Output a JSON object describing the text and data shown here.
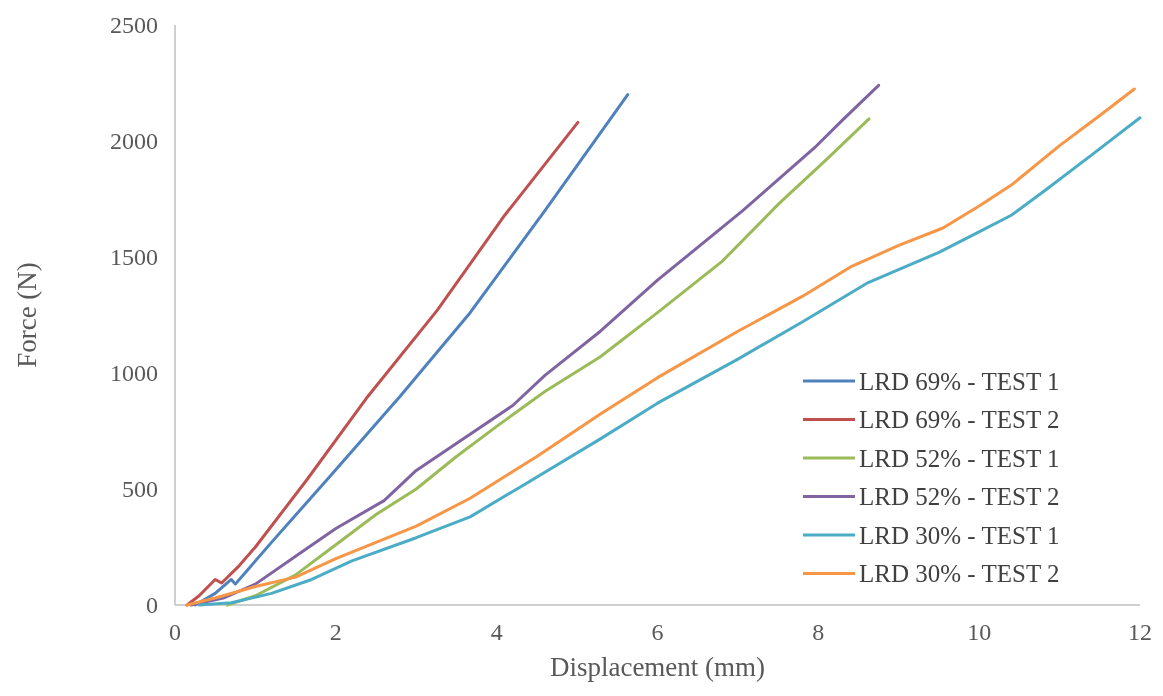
{
  "chart_data": {
    "type": "line",
    "xlabel": "Displacement (mm)",
    "ylabel": "Force (N)",
    "xlim": [
      0,
      12
    ],
    "ylim": [
      0,
      2500
    ],
    "xticks": [
      0,
      2,
      4,
      6,
      8,
      10,
      12
    ],
    "yticks": [
      0,
      500,
      1000,
      1500,
      2000,
      2500
    ],
    "grid": false,
    "legend": "bottom right",
    "marker": "none",
    "line_style": "solid",
    "series": [
      {
        "name": "LRD 69% - TEST 1",
        "color": "#4f81bd",
        "x": [
          0.25,
          0.5,
          0.7,
          0.75,
          0.9,
          1.2,
          1.89,
          2.8,
          3.67,
          4.6,
          5.63
        ],
        "values": [
          0,
          50,
          110,
          90,
          150,
          270,
          540,
          900,
          1260,
          1700,
          2200
        ]
      },
      {
        "name": "LRD 69% - TEST 2",
        "color": "#c0504d",
        "x": [
          0.15,
          0.3,
          0.5,
          0.58,
          0.8,
          1.0,
          1.64,
          2.4,
          3.26,
          4.1,
          5.01
        ],
        "values": [
          0,
          40,
          110,
          95,
          170,
          250,
          540,
          900,
          1270,
          1680,
          2080
        ]
      },
      {
        "name": "LRD 52% - TEST 1",
        "color": "#9bbb59",
        "x": [
          0.65,
          1,
          1.5,
          2,
          2.5,
          3,
          3.5,
          4,
          4.6,
          5.29,
          6,
          6.8,
          7.51,
          8.1,
          8.63
        ],
        "values": [
          0,
          40,
          130,
          260,
          390,
          500,
          640,
          770,
          920,
          1070,
          1260,
          1480,
          1730,
          1920,
          2095
        ]
      },
      {
        "name": "LRD 52% - TEST 2",
        "color": "#8064a2",
        "x": [
          0.2,
          0.6,
          1,
          1.5,
          2,
          2.6,
          3,
          3.6,
          4.2,
          4.6,
          5.29,
          6,
          7.06,
          7.95,
          8.3,
          8.75
        ],
        "values": [
          0,
          30,
          90,
          210,
          330,
          450,
          580,
          720,
          860,
          990,
          1180,
          1400,
          1700,
          1970,
          2090,
          2240
        ]
      },
      {
        "name": "LRD 30% - TEST 1",
        "color": "#4bacc6",
        "x": [
          0.3,
          0.7,
          1.2,
          1.7,
          2.2,
          3,
          3.67,
          4.3,
          5.29,
          6,
          7,
          7.8,
          8.62,
          9.5,
          9.95,
          10.4,
          10.83,
          11.4,
          12
        ],
        "values": [
          0,
          10,
          50,
          110,
          190,
          290,
          380,
          510,
          716,
          870,
          1060,
          1220,
          1390,
          1520,
          1600,
          1680,
          1790,
          1940,
          2100
        ]
      },
      {
        "name": "LRD 30% - TEST 2",
        "color": "#f79646",
        "x": [
          0.15,
          0.5,
          1,
          1.5,
          2,
          2.5,
          3,
          3.67,
          4.5,
          5.29,
          6,
          7,
          7.8,
          8.4,
          9,
          9.55,
          10,
          10.4,
          11,
          11.5,
          11.93
        ],
        "values": [
          0,
          30,
          80,
          120,
          200,
          270,
          340,
          460,
          640,
          823,
          980,
          1180,
          1330,
          1457,
          1550,
          1625,
          1720,
          1810,
          1980,
          2110,
          2224
        ]
      }
    ]
  }
}
